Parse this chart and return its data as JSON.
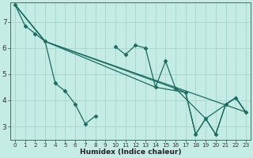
{
  "xlabel": "Humidex (Indice chaleur)",
  "bg_color": "#c5ece4",
  "line_color": "#1a6b60",
  "grid_color": "#a8d8d0",
  "xlim": [
    -0.5,
    23.5
  ],
  "ylim": [
    2.5,
    7.75
  ],
  "yticks": [
    3,
    4,
    5,
    6,
    7
  ],
  "xticks": [
    0,
    1,
    2,
    3,
    4,
    5,
    6,
    7,
    8,
    9,
    10,
    11,
    12,
    13,
    14,
    15,
    16,
    17,
    18,
    19,
    20,
    21,
    22,
    23
  ],
  "lines": [
    {
      "x": [
        0,
        1,
        2,
        3,
        4,
        5,
        6,
        7,
        8,
        9,
        10,
        11,
        12,
        13,
        14,
        15,
        16,
        17,
        18,
        19,
        20,
        21,
        22,
        23
      ],
      "y": [
        7.65,
        6.85,
        6.55,
        6.25,
        4.65,
        4.35,
        3.85,
        3.1,
        3.4,
        null,
        6.05,
        5.75,
        6.1,
        6.0,
        4.5,
        5.5,
        4.45,
        4.3,
        2.7,
        3.3,
        2.7,
        3.85,
        4.1,
        3.55
      ],
      "has_markers": true
    },
    {
      "x": [
        0,
        3,
        23
      ],
      "y": [
        7.65,
        6.25,
        3.55
      ],
      "has_markers": false
    },
    {
      "x": [
        0,
        3,
        16,
        19,
        22,
        23
      ],
      "y": [
        7.65,
        6.25,
        4.45,
        3.3,
        4.1,
        3.55
      ],
      "has_markers": false
    },
    {
      "x": [
        0,
        3,
        14,
        17,
        18,
        19,
        20,
        21,
        22,
        23
      ],
      "y": [
        7.65,
        6.25,
        4.5,
        4.3,
        2.7,
        3.3,
        2.7,
        3.85,
        4.1,
        3.55
      ],
      "has_markers": false
    }
  ]
}
